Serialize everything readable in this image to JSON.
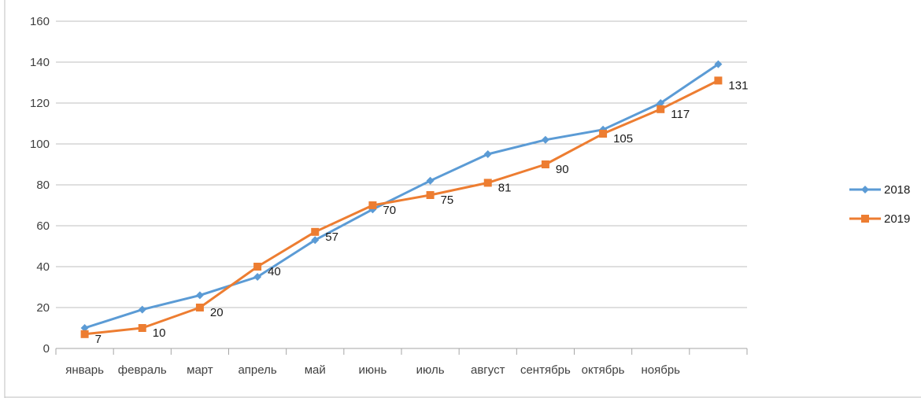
{
  "chart_data": {
    "type": "line",
    "categories": [
      "январь",
      "февраль",
      "март",
      "апрель",
      "май",
      "июнь",
      "июль",
      "август",
      "сентябрь",
      "октябрь",
      "ноябрь",
      ""
    ],
    "series": [
      {
        "name": "2018",
        "color": "#5B9BD5",
        "marker": "diamond",
        "values": [
          10,
          19,
          26,
          35,
          53,
          68,
          82,
          95,
          102,
          107,
          120,
          139
        ],
        "show_labels": false
      },
      {
        "name": "2019",
        "color": "#ED7D31",
        "marker": "square",
        "values": [
          7,
          10,
          20,
          40,
          57,
          70,
          75,
          81,
          90,
          105,
          117,
          131
        ],
        "show_labels": true
      }
    ],
    "data_labels_2019": [
      "7",
      "10",
      "20",
      "40",
      "57",
      "70",
      "75",
      "81",
      "90",
      "105",
      "117",
      "131"
    ],
    "ylim": [
      0,
      160
    ],
    "yticks": [
      "0",
      "20",
      "40",
      "60",
      "80",
      "100",
      "120",
      "140",
      "160"
    ],
    "ytick_values": [
      0,
      20,
      40,
      60,
      80,
      100,
      120,
      140,
      160
    ],
    "grid": true,
    "legend": "right",
    "title": "",
    "xlabel": "",
    "ylabel": ""
  }
}
